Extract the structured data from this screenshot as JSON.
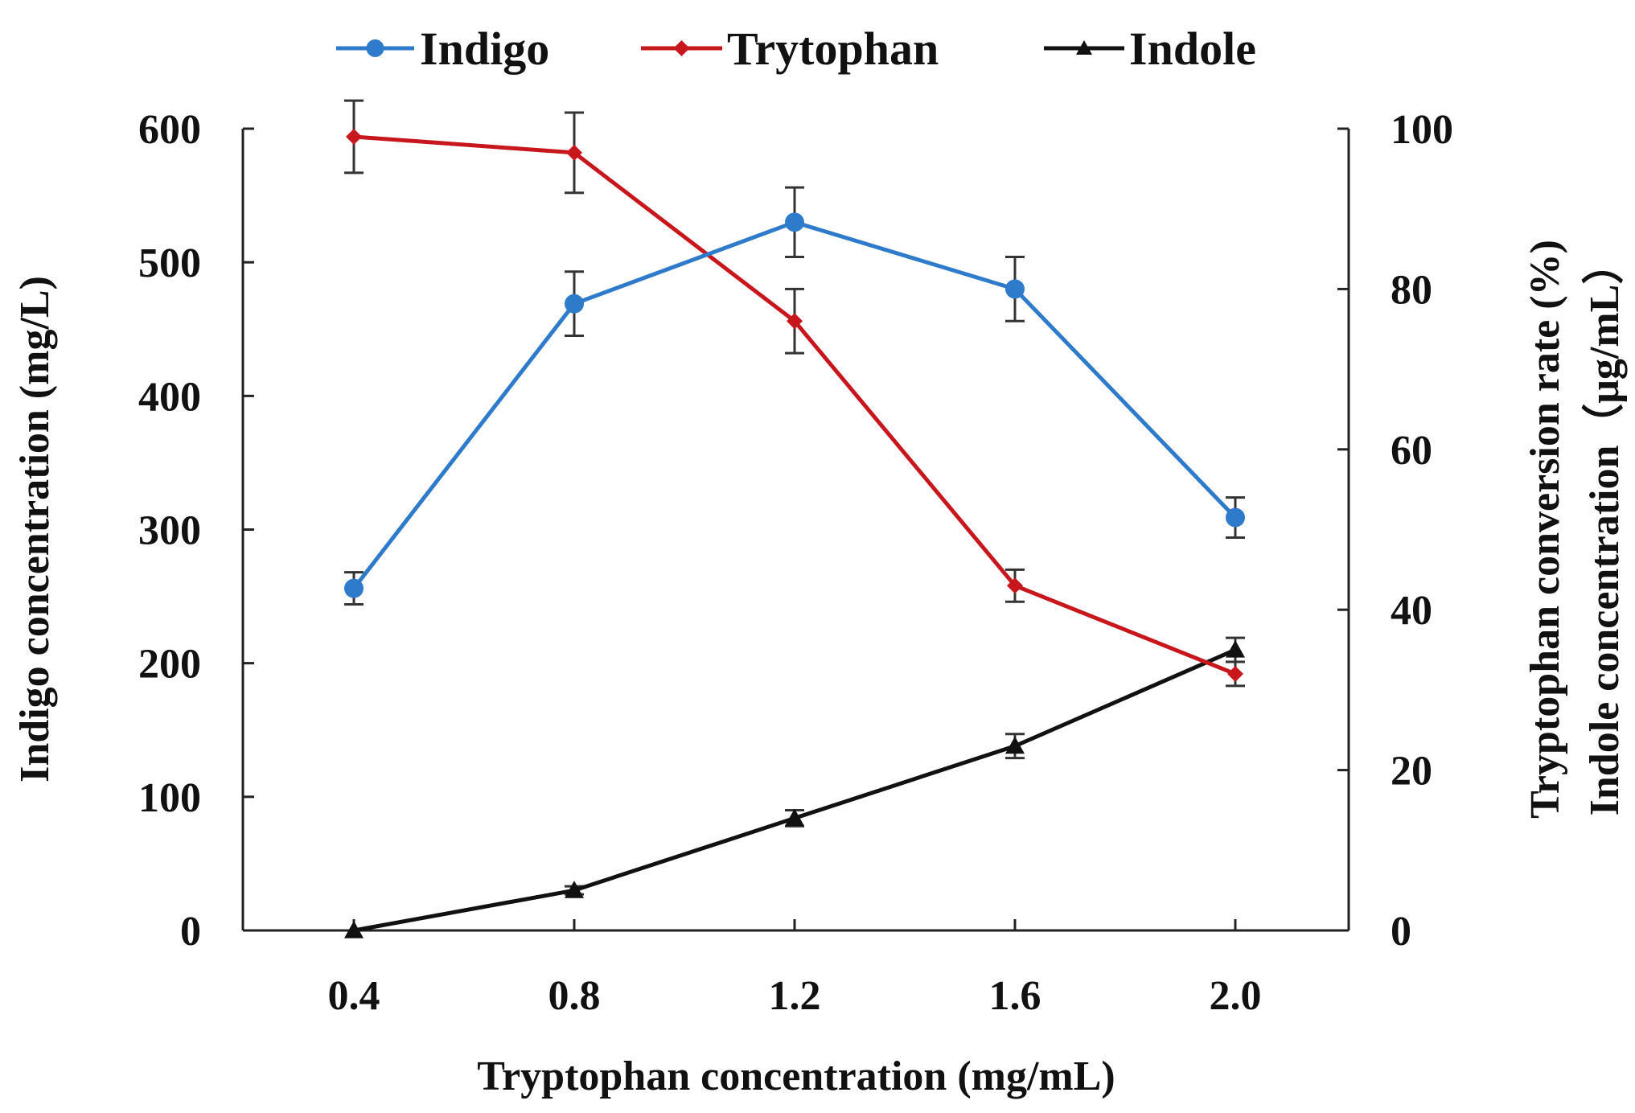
{
  "chart_data": {
    "type": "line",
    "title": "",
    "xlabel": "Tryptophan concentration (mg/mL)",
    "ylabel_left": "Indigo concentration (mg/L)",
    "ylabel_right": [
      "Tryptophan conversion rate (%)",
      "Indole concentration（μg/mL）"
    ],
    "categories": [
      "0.4",
      "0.8",
      "1.2",
      "1.6",
      "2.0"
    ],
    "ylim_left": [
      0,
      600
    ],
    "ylim_right": [
      0,
      100
    ],
    "yticks_left": [
      "0",
      "100",
      "200",
      "300",
      "400",
      "500",
      "600"
    ],
    "yticks_right": [
      "0",
      "20",
      "40",
      "60",
      "80",
      "100"
    ],
    "legend_position": "top",
    "series": [
      {
        "name": "Indigo",
        "axis": "left",
        "color": "#2E7BCB",
        "marker": "circle",
        "values": [
          256,
          469,
          530,
          480,
          309
        ],
        "errors": [
          12,
          24,
          26,
          24,
          15
        ]
      },
      {
        "name": "Trytophan",
        "axis": "right",
        "color": "#C8161D",
        "marker": "diamond",
        "values": [
          99,
          97,
          76,
          43,
          32
        ],
        "errors": [
          4.5,
          5,
          4,
          2,
          1.5
        ]
      },
      {
        "name": "Indole",
        "axis": "right",
        "color": "#111111",
        "marker": "triangle",
        "values": [
          0,
          5,
          14,
          23,
          35
        ],
        "errors": [
          0,
          0.5,
          1,
          1.5,
          1.5
        ]
      }
    ]
  }
}
